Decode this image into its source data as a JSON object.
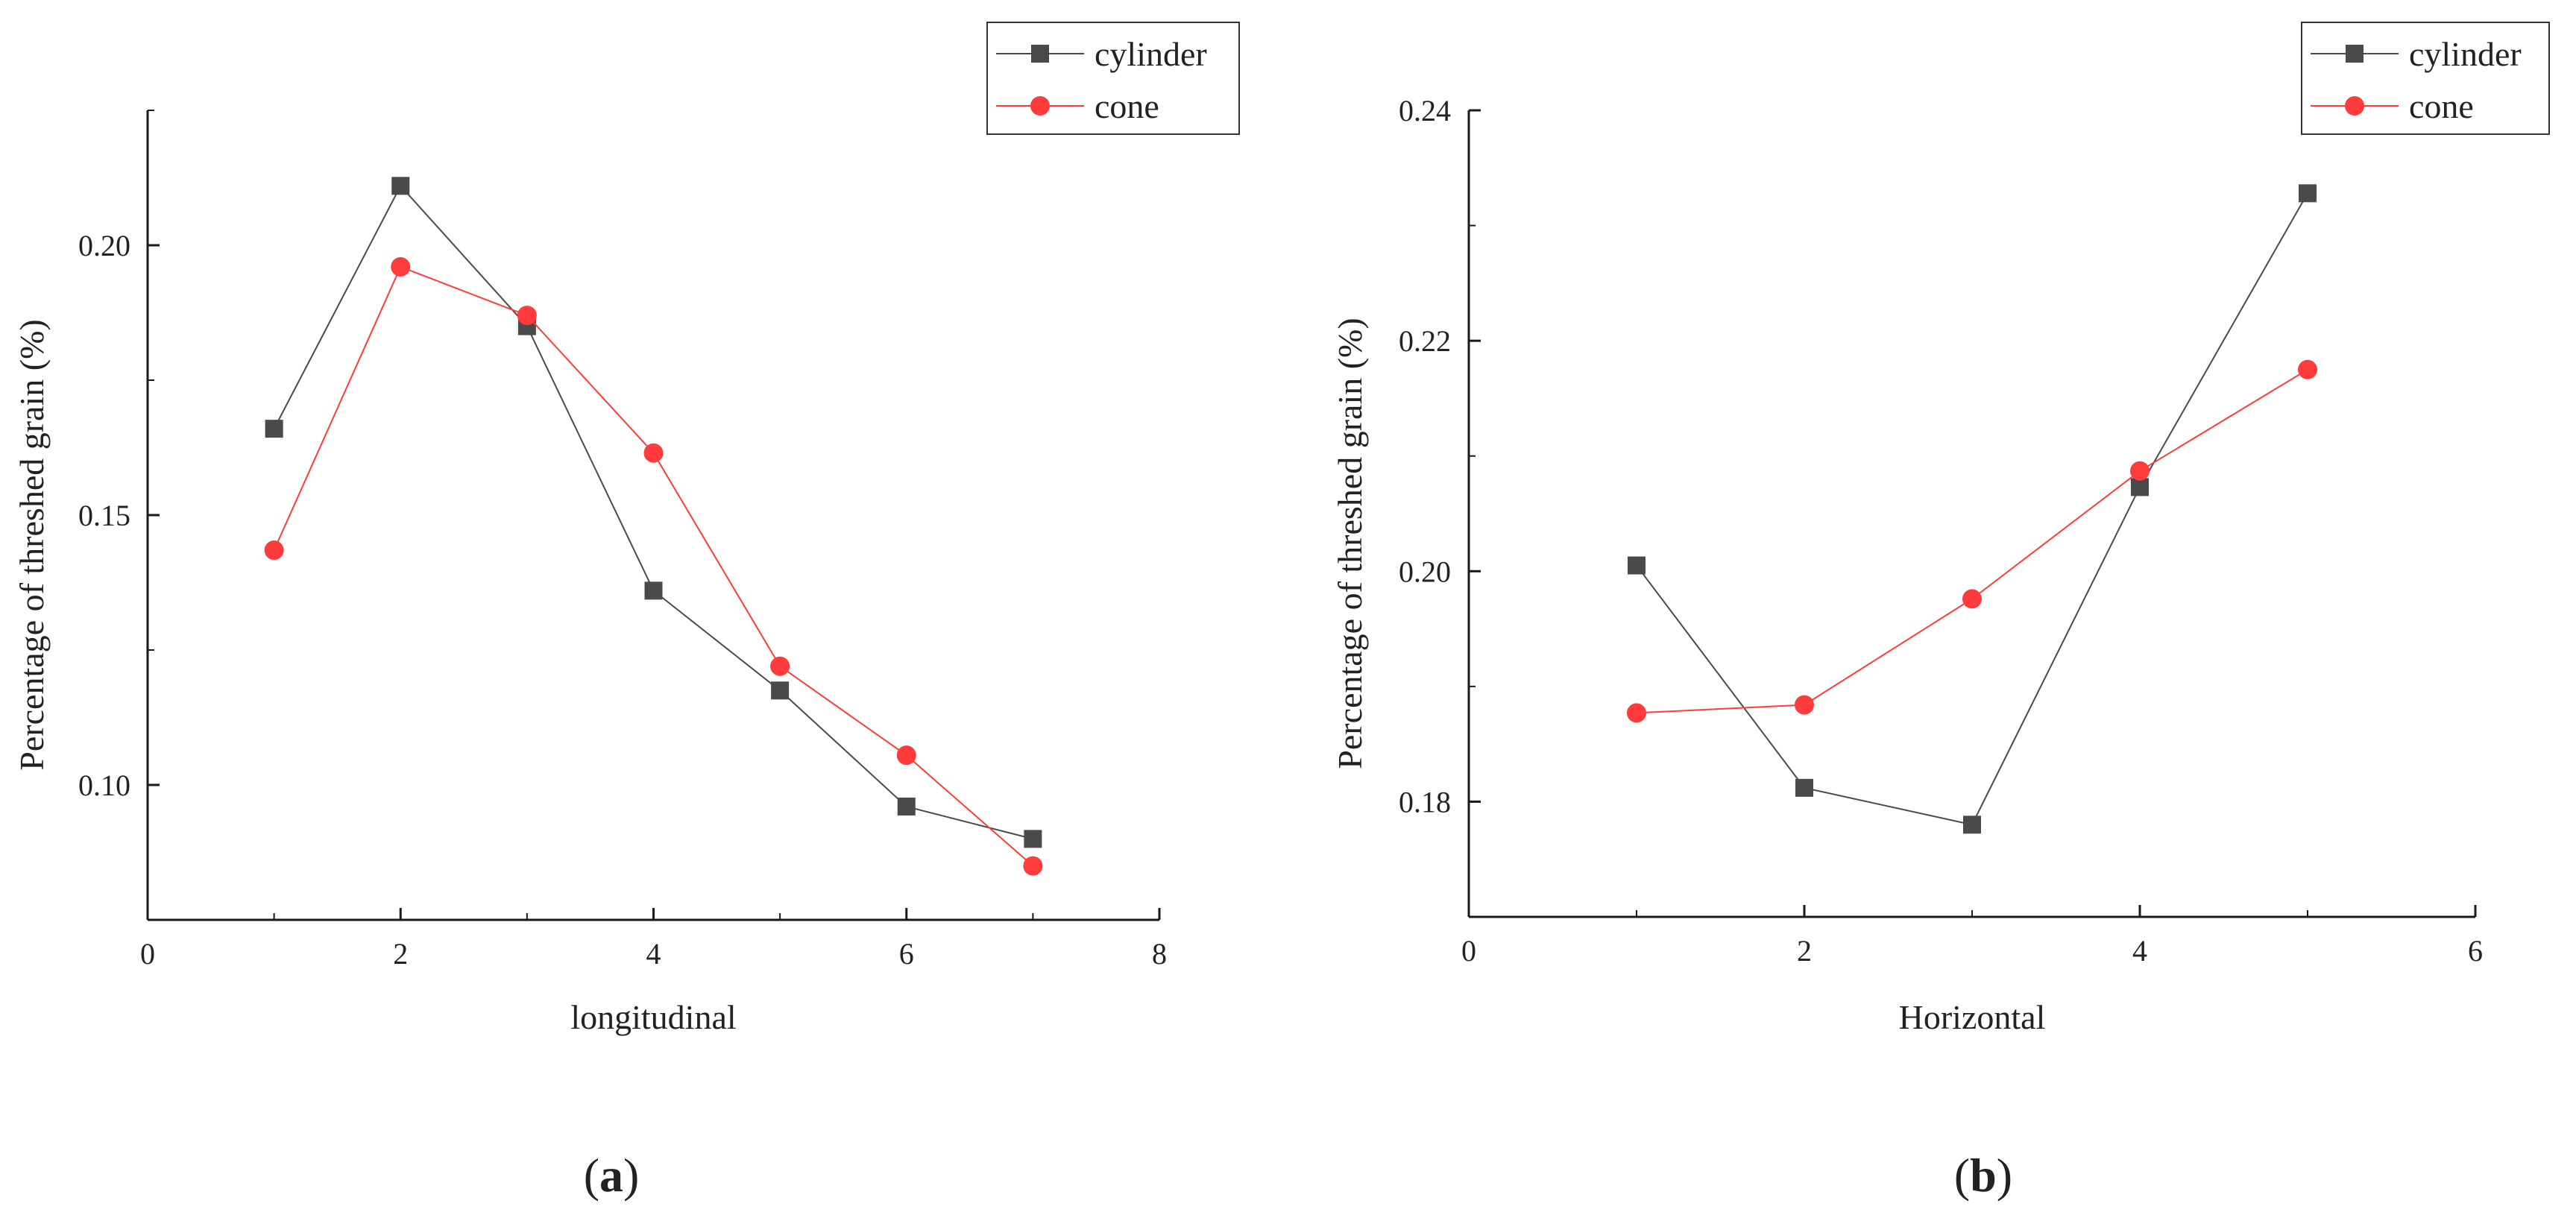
{
  "colors": {
    "cylinder": "#4a4a4a",
    "cone": "#ff3b3b",
    "axis": "#1a1a1a",
    "legend_border": "#333333"
  },
  "chart_data": [
    {
      "type": "line",
      "panel": "a",
      "caption_open": "(",
      "caption_letter": "a",
      "caption_close": ")",
      "title": "",
      "xlabel": "longitudinal",
      "ylabel": "Percentage of threshed grain (%)",
      "xlim": [
        0,
        8
      ],
      "ylim": [
        0.075,
        0.225
      ],
      "xticks": [
        0,
        2,
        4,
        6,
        8
      ],
      "xtick_labels": [
        "0",
        "2",
        "4",
        "6",
        "8"
      ],
      "yticks": [
        0.1,
        0.15,
        0.2
      ],
      "ytick_labels": [
        "0.10",
        "0.15",
        "0.20"
      ],
      "x": [
        1,
        2,
        3,
        4,
        5,
        6,
        7
      ],
      "series": [
        {
          "name": "cylinder",
          "marker": "square",
          "values": [
            0.166,
            0.211,
            0.185,
            0.136,
            0.1175,
            0.096,
            0.09
          ]
        },
        {
          "name": "cone",
          "marker": "circle",
          "values": [
            0.1435,
            0.196,
            0.187,
            0.1615,
            0.122,
            0.1055,
            0.085
          ]
        }
      ],
      "legend": {
        "placement": "top-right",
        "entries": [
          "cylinder",
          "cone"
        ]
      }
    },
    {
      "type": "line",
      "panel": "b",
      "caption_open": "(",
      "caption_letter": "b",
      "caption_close": ")",
      "title": "",
      "xlabel": "Horizontal",
      "ylabel": "Percentage of threshed grain (%)",
      "xlim": [
        0,
        6
      ],
      "ylim": [
        0.17,
        0.24
      ],
      "xticks": [
        0,
        2,
        4,
        6
      ],
      "xtick_labels": [
        "0",
        "2",
        "4",
        "6"
      ],
      "yticks": [
        0.18,
        0.2,
        0.22,
        0.24
      ],
      "ytick_labels": [
        "0.18",
        "0.20",
        "0.22",
        "0.24"
      ],
      "x": [
        1,
        2,
        3,
        4,
        5
      ],
      "series": [
        {
          "name": "cylinder",
          "marker": "square",
          "values": [
            0.2005,
            0.1812,
            0.178,
            0.2073,
            0.2328
          ]
        },
        {
          "name": "cone",
          "marker": "circle",
          "values": [
            0.1877,
            0.1884,
            0.1976,
            0.2087,
            0.2175
          ]
        }
      ],
      "legend": {
        "placement": "top-right",
        "entries": [
          "cylinder",
          "cone"
        ]
      }
    }
  ]
}
